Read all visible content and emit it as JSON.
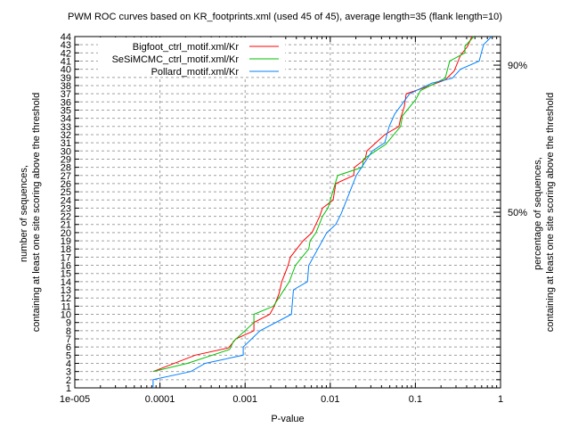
{
  "chart_data": {
    "type": "line",
    "title": "PWM ROC curves based on KR_footprints.xml (used 45 of 45), average length=35 (flank length=10)",
    "xlabel": "P-value",
    "ylabel_lines": [
      "number of sequences,",
      "containing at least one site scoring above the threshold"
    ],
    "y2label_lines": [
      "percentage of sequences,",
      "containing at least one site scoring above the threshold"
    ],
    "xscale": "log",
    "xlim": [
      1e-05,
      1
    ],
    "ylim": [
      1,
      44
    ],
    "x_ticks": [
      1e-05,
      0.0001,
      0.001,
      0.01,
      0.1,
      1
    ],
    "x_tick_labels": [
      "1e-005",
      "0.0001",
      "0.001",
      "0.01",
      "0.1",
      "1"
    ],
    "y_ticks": [
      1,
      2,
      3,
      4,
      5,
      6,
      7,
      8,
      9,
      10,
      11,
      12,
      13,
      14,
      15,
      16,
      17,
      18,
      19,
      20,
      21,
      22,
      23,
      24,
      25,
      26,
      27,
      28,
      29,
      30,
      31,
      32,
      33,
      34,
      35,
      36,
      37,
      38,
      39,
      40,
      41,
      42,
      43,
      44
    ],
    "y2_ticks": [
      {
        "value": 22.5,
        "label": "50%"
      },
      {
        "value": 40.5,
        "label": "90%"
      }
    ],
    "grid": true,
    "legend_position": "top-left",
    "series": [
      {
        "name": "Bigfoot_ctrl_motif.xml/Kr",
        "color": "#ff0000",
        "points": [
          [
            8.3e-05,
            3
          ],
          [
            0.00026,
            5
          ],
          [
            0.00064,
            5.9
          ],
          [
            0.00078,
            7
          ],
          [
            0.00127,
            8
          ],
          [
            0.00127,
            9
          ],
          [
            0.00195,
            10
          ],
          [
            0.0022,
            11
          ],
          [
            0.0025,
            12.5
          ],
          [
            0.0027,
            14
          ],
          [
            0.0032,
            16
          ],
          [
            0.0034,
            17
          ],
          [
            0.0048,
            19
          ],
          [
            0.0061,
            20
          ],
          [
            0.0075,
            22
          ],
          [
            0.0081,
            23
          ],
          [
            0.0108,
            24
          ],
          [
            0.0116,
            26
          ],
          [
            0.0188,
            27
          ],
          [
            0.0193,
            28
          ],
          [
            0.0257,
            29
          ],
          [
            0.027,
            30
          ],
          [
            0.0437,
            32
          ],
          [
            0.064,
            33
          ],
          [
            0.067,
            34
          ],
          [
            0.074,
            35.4
          ],
          [
            0.078,
            37
          ],
          [
            0.132,
            37.8
          ],
          [
            0.224,
            38.7
          ],
          [
            0.286,
            39.8
          ],
          [
            0.338,
            41.7
          ],
          [
            0.41,
            42.8
          ],
          [
            0.46,
            44
          ]
        ]
      },
      {
        "name": "SeSiMCMC_ctrl_motif.xml/Kr",
        "color": "#00c000",
        "points": [
          [
            8.3e-05,
            3
          ],
          [
            0.00021,
            4
          ],
          [
            0.00066,
            5.7
          ],
          [
            0.00073,
            6.7
          ],
          [
            0.00127,
            9
          ],
          [
            0.00127,
            10
          ],
          [
            0.00215,
            11
          ],
          [
            0.0033,
            14
          ],
          [
            0.0039,
            16
          ],
          [
            0.0056,
            18
          ],
          [
            0.0058,
            19
          ],
          [
            0.0068,
            20
          ],
          [
            0.0081,
            22
          ],
          [
            0.0094,
            23
          ],
          [
            0.0122,
            27
          ],
          [
            0.0239,
            28
          ],
          [
            0.0245,
            29
          ],
          [
            0.0448,
            30.8
          ],
          [
            0.067,
            33
          ],
          [
            0.0706,
            34.3
          ],
          [
            0.101,
            36.3
          ],
          [
            0.115,
            37.4
          ],
          [
            0.224,
            38.9
          ],
          [
            0.253,
            41
          ],
          [
            0.382,
            42
          ],
          [
            0.382,
            42.8
          ],
          [
            0.485,
            44
          ]
        ]
      },
      {
        "name": "Pollard_motif.xml/Kr",
        "color": "#0080ff",
        "points": [
          [
            8.3e-05,
            1
          ],
          [
            8.3e-05,
            2
          ],
          [
            0.00023,
            3
          ],
          [
            0.00034,
            4
          ],
          [
            0.00095,
            5
          ],
          [
            0.00095,
            6
          ],
          [
            0.0015,
            8
          ],
          [
            0.0035,
            10
          ],
          [
            0.0037,
            13
          ],
          [
            0.0054,
            14
          ],
          [
            0.0056,
            16
          ],
          [
            0.0091,
            20
          ],
          [
            0.0116,
            21
          ],
          [
            0.0134,
            22.3
          ],
          [
            0.0202,
            27
          ],
          [
            0.0312,
            30
          ],
          [
            0.0437,
            31
          ],
          [
            0.0493,
            33
          ],
          [
            0.057,
            34.5
          ],
          [
            0.0857,
            37
          ],
          [
            0.156,
            38.3
          ],
          [
            0.272,
            38.9
          ],
          [
            0.338,
            40
          ],
          [
            0.561,
            41
          ],
          [
            0.632,
            43
          ],
          [
            0.785,
            44
          ]
        ]
      }
    ]
  }
}
